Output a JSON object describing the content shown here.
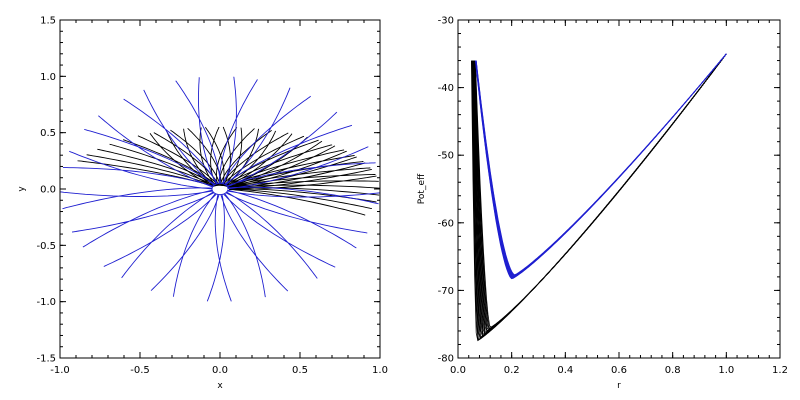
{
  "chart_data": [
    {
      "type": "line",
      "xlabel": "x",
      "ylabel": "y",
      "xlim": [
        -1.0,
        1.0
      ],
      "ylim": [
        -1.5,
        1.5
      ],
      "xticks": [
        -1.0,
        -0.5,
        0.0,
        0.5,
        1.0
      ],
      "xtick_labels": [
        "-1.0",
        "-0.5",
        "0.0",
        "0.5",
        "1.0"
      ],
      "yticks": [
        -1.5,
        -1.0,
        -0.5,
        0.0,
        0.5,
        1.0,
        1.5
      ],
      "ytick_labels": [
        "-1.5",
        "-1.0",
        "-0.5",
        "0.0",
        "0.5",
        "1.0",
        "1.5"
      ],
      "grid": false,
      "series": [
        {
          "color": "#000000",
          "pattern": "precessing rosette orbit",
          "r_max": 1.0,
          "r_min": 0.06,
          "petals": 46,
          "precession_deg_per_petal": 3.2,
          "start_angle_deg": -8,
          "y_scale": 0.55
        },
        {
          "color": "#1f1fd0",
          "pattern": "precessing rosette orbit",
          "r_max": 1.0,
          "r_min": 0.05,
          "petals": 34,
          "precession_deg_per_petal": 10.5,
          "start_angle_deg": 2,
          "y_scale": 1.0
        }
      ]
    },
    {
      "type": "line",
      "xlabel": "r",
      "ylabel": "Pot_eff",
      "xlim": [
        0.0,
        1.2
      ],
      "ylim": [
        -80,
        -30
      ],
      "xticks": [
        0.0,
        0.2,
        0.4,
        0.6,
        0.8,
        1.0,
        1.2
      ],
      "xtick_labels": [
        "0.0",
        "0.2",
        "0.4",
        "0.6",
        "0.8",
        "1.0",
        "1.2"
      ],
      "yticks": [
        -80,
        -70,
        -60,
        -50,
        -40,
        -30
      ],
      "ytick_labels": [
        "-80",
        "-70",
        "-60",
        "-50",
        "-40",
        "-30"
      ],
      "grid": false,
      "series": [
        {
          "color": "#000000",
          "pattern": "bundle of effective potential curves",
          "r_start": 0.05,
          "r_min": 0.09,
          "v_min": -76.5,
          "r_end": 1.0,
          "v_end": -35,
          "bundle_count": 18,
          "spread_r": 0.05,
          "spread_v": 2.0
        },
        {
          "color": "#1f1fd0",
          "pattern": "bundle of effective potential curves",
          "r_start": 0.065,
          "r_min": 0.205,
          "v_min": -68.0,
          "r_end": 1.0,
          "v_end": -35,
          "bundle_count": 10,
          "spread_r": 0.01,
          "spread_v": 0.6
        }
      ]
    }
  ]
}
